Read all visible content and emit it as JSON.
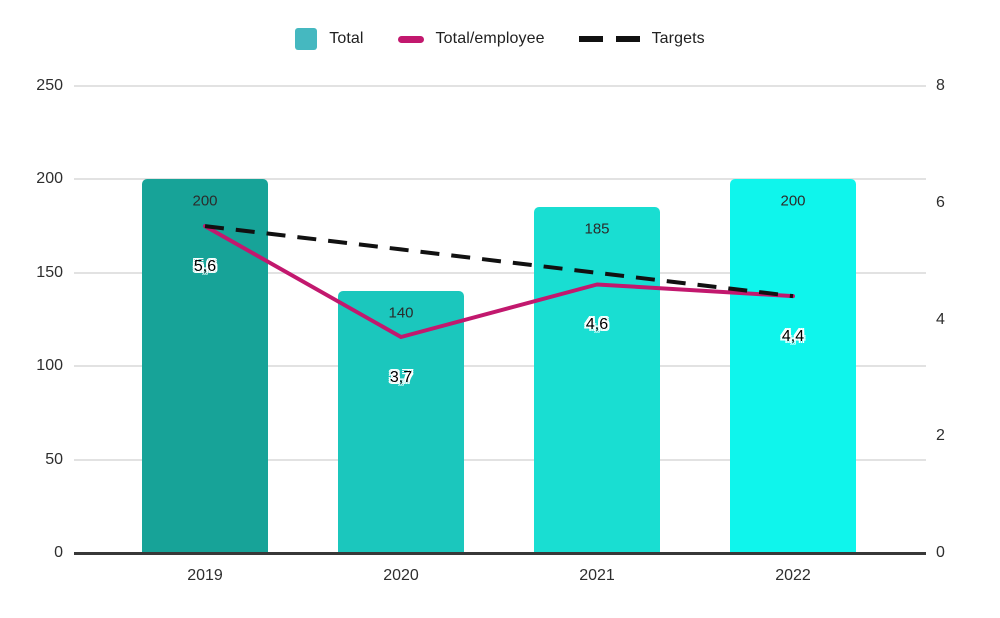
{
  "legend": {
    "items": [
      {
        "label": "Total",
        "marker": "square-icon",
        "color": "#45B8C0"
      },
      {
        "label": "Total/employee",
        "marker": "line-icon",
        "color": "#C2186E"
      },
      {
        "label": "Targets",
        "marker": "dashes-icon",
        "color": "#111111"
      }
    ]
  },
  "chart_data": {
    "type": "combo",
    "legend_position": "top",
    "grid": true,
    "categories": [
      "2019",
      "2020",
      "2021",
      "2022"
    ],
    "series": [
      {
        "name": "Total",
        "type": "bar",
        "axis": "left",
        "values": [
          200,
          140,
          185,
          200
        ],
        "value_labels": [
          "200",
          "140",
          "185",
          "200"
        ],
        "bar_colors": [
          "#17A398",
          "#1BC7BD",
          "#19DED2",
          "#0FF5EC"
        ]
      },
      {
        "name": "Total/employee",
        "type": "line",
        "axis": "right",
        "values": [
          5.6,
          3.7,
          4.6,
          4.4
        ],
        "value_labels": [
          "5,6",
          "3,7",
          "4,6",
          "4,4"
        ],
        "color": "#C2186E"
      },
      {
        "name": "Targets",
        "type": "line",
        "style": "dashed",
        "axis": "right",
        "values": [
          5.6,
          5.2,
          4.8,
          4.4
        ],
        "value_labels": [],
        "color": "#111111"
      }
    ],
    "left_axis": {
      "min": 0,
      "max": 250,
      "ticks": [
        0,
        50,
        100,
        150,
        200,
        250
      ],
      "tick_labels": [
        "0",
        "50",
        "100",
        "150",
        "200",
        "250"
      ]
    },
    "right_axis": {
      "min": 0,
      "max": 8,
      "ticks": [
        0,
        2,
        4,
        6,
        8
      ],
      "tick_labels": [
        "0",
        "2",
        "4",
        "6",
        "8"
      ]
    }
  },
  "colors": {
    "gridline": "#E2E2E2",
    "axis_baseline": "#383838",
    "background": "#FFFFFF"
  }
}
